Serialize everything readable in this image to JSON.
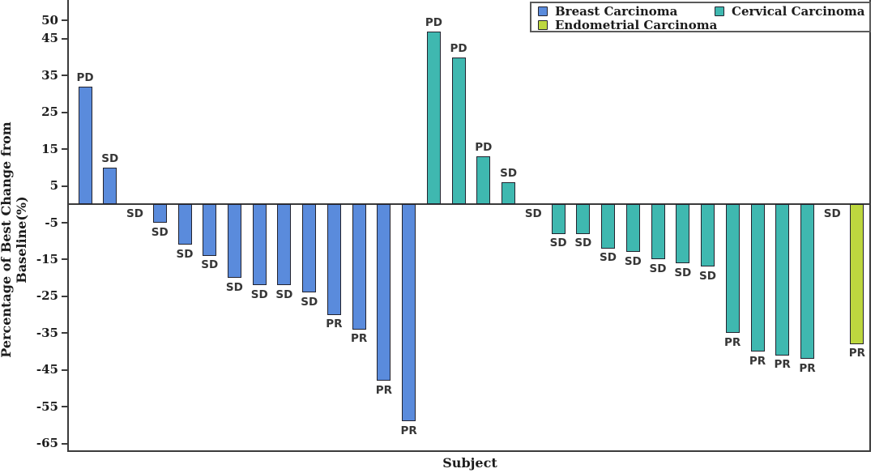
{
  "chart_data": {
    "type": "bar",
    "title": "",
    "xlabel": "Subject",
    "ylabel": "Percentage of Best Change from Baseline(%)",
    "ylim": [
      -67,
      55.5
    ],
    "yticks": [
      50,
      45,
      35,
      25,
      15,
      5,
      -5,
      -15,
      -25,
      -35,
      -45,
      -55,
      -65
    ],
    "grid": false,
    "legend_position": "top-right",
    "axis_color": "#3b3b3b",
    "legend": [
      {
        "label": "Breast Carcinoma",
        "color": "#5a8bdc"
      },
      {
        "label": "Cervical Carcinoma",
        "color": "#3fb8b0"
      },
      {
        "label": "Endometrial Carcinoma",
        "color": "#bdd73f"
      }
    ],
    "bars": [
      {
        "group": "Breast Carcinoma",
        "value": 32,
        "label": "PD"
      },
      {
        "group": "Breast Carcinoma",
        "value": 10,
        "label": "SD"
      },
      {
        "group": "Breast Carcinoma",
        "value": 0,
        "label": "SD"
      },
      {
        "group": "Breast Carcinoma",
        "value": -5,
        "label": "SD"
      },
      {
        "group": "Breast Carcinoma",
        "value": -11,
        "label": "SD"
      },
      {
        "group": "Breast Carcinoma",
        "value": -14,
        "label": "SD"
      },
      {
        "group": "Breast Carcinoma",
        "value": -20,
        "label": "SD"
      },
      {
        "group": "Breast Carcinoma",
        "value": -22,
        "label": "SD"
      },
      {
        "group": "Breast Carcinoma",
        "value": -22,
        "label": "SD"
      },
      {
        "group": "Breast Carcinoma",
        "value": -24,
        "label": "SD"
      },
      {
        "group": "Breast Carcinoma",
        "value": -30,
        "label": "PR"
      },
      {
        "group": "Breast Carcinoma",
        "value": -34,
        "label": "PR"
      },
      {
        "group": "Breast Carcinoma",
        "value": -48,
        "label": "PR"
      },
      {
        "group": "Breast Carcinoma",
        "value": -59,
        "label": "PR"
      },
      {
        "group": "Cervical Carcinoma",
        "value": 47,
        "label": "PD"
      },
      {
        "group": "Cervical Carcinoma",
        "value": 40,
        "label": "PD"
      },
      {
        "group": "Cervical Carcinoma",
        "value": 13,
        "label": "PD"
      },
      {
        "group": "Cervical Carcinoma",
        "value": 6,
        "label": "SD"
      },
      {
        "group": "Cervical Carcinoma",
        "value": 0,
        "label": "SD"
      },
      {
        "group": "Cervical Carcinoma",
        "value": -8,
        "label": "SD"
      },
      {
        "group": "Cervical Carcinoma",
        "value": -8,
        "label": "SD"
      },
      {
        "group": "Cervical Carcinoma",
        "value": -12,
        "label": "SD"
      },
      {
        "group": "Cervical Carcinoma",
        "value": -13,
        "label": "SD"
      },
      {
        "group": "Cervical Carcinoma",
        "value": -15,
        "label": "SD"
      },
      {
        "group": "Cervical Carcinoma",
        "value": -16,
        "label": "SD"
      },
      {
        "group": "Cervical Carcinoma",
        "value": -17,
        "label": "SD"
      },
      {
        "group": "Cervical Carcinoma",
        "value": -35,
        "label": "PR"
      },
      {
        "group": "Cervical Carcinoma",
        "value": -40,
        "label": "PR"
      },
      {
        "group": "Cervical Carcinoma",
        "value": -41,
        "label": "PR"
      },
      {
        "group": "Cervical Carcinoma",
        "value": -42,
        "label": "PR"
      },
      {
        "group": "Endometrial Carcinoma",
        "value": 0,
        "label": "SD"
      },
      {
        "group": "Endometrial Carcinoma",
        "value": -38,
        "label": "PR"
      }
    ]
  }
}
